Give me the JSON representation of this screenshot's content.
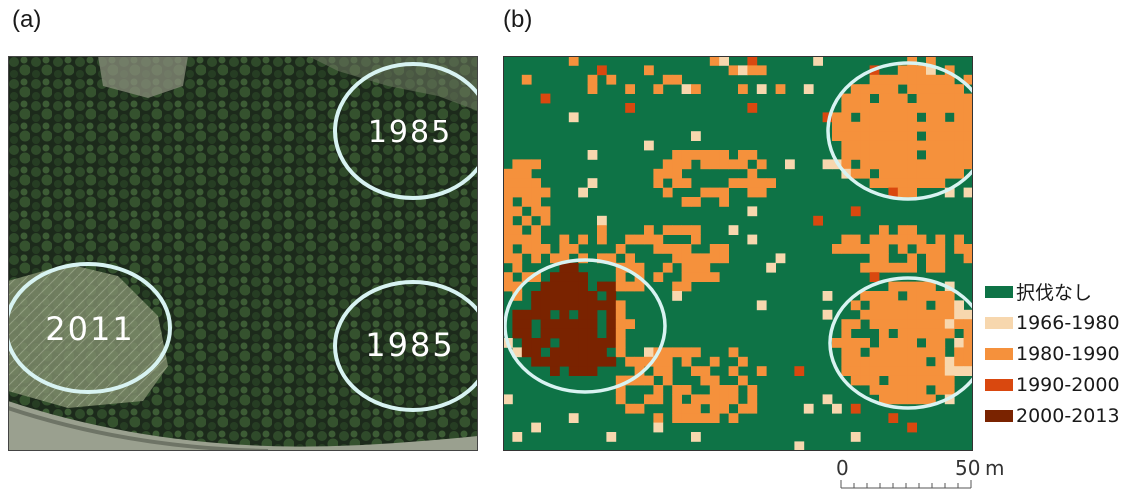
{
  "panels": {
    "a": {
      "label": "(a)",
      "kind": "aerial-photo",
      "circles": [
        {
          "year_label": "1985",
          "position": "top-right"
        },
        {
          "year_label": "2011",
          "position": "bottom-left"
        },
        {
          "year_label": "1985",
          "position": "bottom-right"
        }
      ]
    },
    "b": {
      "label": "(b)",
      "kind": "harvest-period-map"
    }
  },
  "legend": {
    "items": [
      {
        "label": "択伐なし",
        "color": "#0e7346"
      },
      {
        "label": "1966-1980",
        "color": "#f7d7ae"
      },
      {
        "label": "1980-1990",
        "color": "#f5913c"
      },
      {
        "label": "1990-2000",
        "color": "#d9480f"
      },
      {
        "label": "2000-2013",
        "color": "#7a2300"
      }
    ]
  },
  "scale_bar": {
    "zero_label": "0",
    "max_label": "50",
    "unit": "m"
  },
  "colors": {
    "circle_outline": "#d8f3f2",
    "forest_dark": "#1d2b1c"
  }
}
